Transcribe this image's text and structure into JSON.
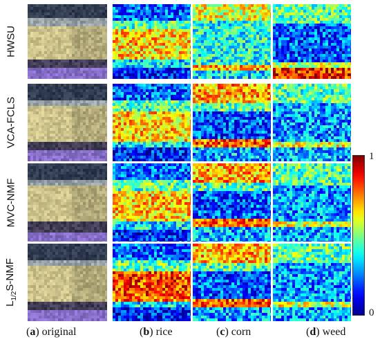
{
  "rows": [
    {
      "label_html": "HWSU"
    },
    {
      "label_html": "VCA-FCLS"
    },
    {
      "label_html": "MVC-NMF"
    },
    {
      "label_html": "L1/2S-NMF"
    }
  ],
  "columns": [
    {
      "letter": "a",
      "text": "original"
    },
    {
      "letter": "b",
      "text": "rice"
    },
    {
      "letter": "c",
      "text": "corn"
    },
    {
      "letter": "d",
      "text": "weed"
    }
  ],
  "colorbar": {
    "max_label": "1",
    "min_label": "0",
    "colormap": "jet"
  },
  "colors": {
    "jet_low": "#00008f",
    "jet_high": "#7f0000"
  }
}
